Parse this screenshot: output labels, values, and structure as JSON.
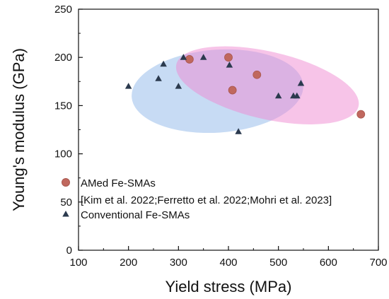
{
  "chart_data": {
    "type": "scatter",
    "xlabel": "Yield stress (MPa)",
    "ylabel": "Young's modulus (GPa)",
    "xlim": [
      100,
      700
    ],
    "ylim": [
      0,
      250
    ],
    "xticks": [
      100,
      200,
      300,
      400,
      500,
      600,
      700
    ],
    "yticks": [
      0,
      50,
      100,
      150,
      200,
      250
    ],
    "grid": false,
    "legend_position": "bottom-left",
    "series": [
      {
        "name": "AMed Fe-SMAs",
        "citation": "[Kim et al. 2022;Ferretto et al. 2022;Mohri et al. 2023]",
        "marker": "circle",
        "color": "#c0685e",
        "region_color": "#f08ad2",
        "x": [
          322,
          400,
          408,
          457,
          665
        ],
        "y": [
          198,
          200,
          166,
          182,
          141
        ]
      },
      {
        "name": "Conventional Fe-SMAs",
        "marker": "triangle",
        "color": "#2b3a4e",
        "region_color": "#8fb8ea",
        "x": [
          200,
          260,
          270,
          300,
          310,
          350,
          402,
          420,
          500,
          530,
          537,
          545
        ],
        "y": [
          170,
          178,
          193,
          170,
          200,
          200,
          192,
          123,
          160,
          160,
          160,
          173
        ]
      }
    ]
  }
}
